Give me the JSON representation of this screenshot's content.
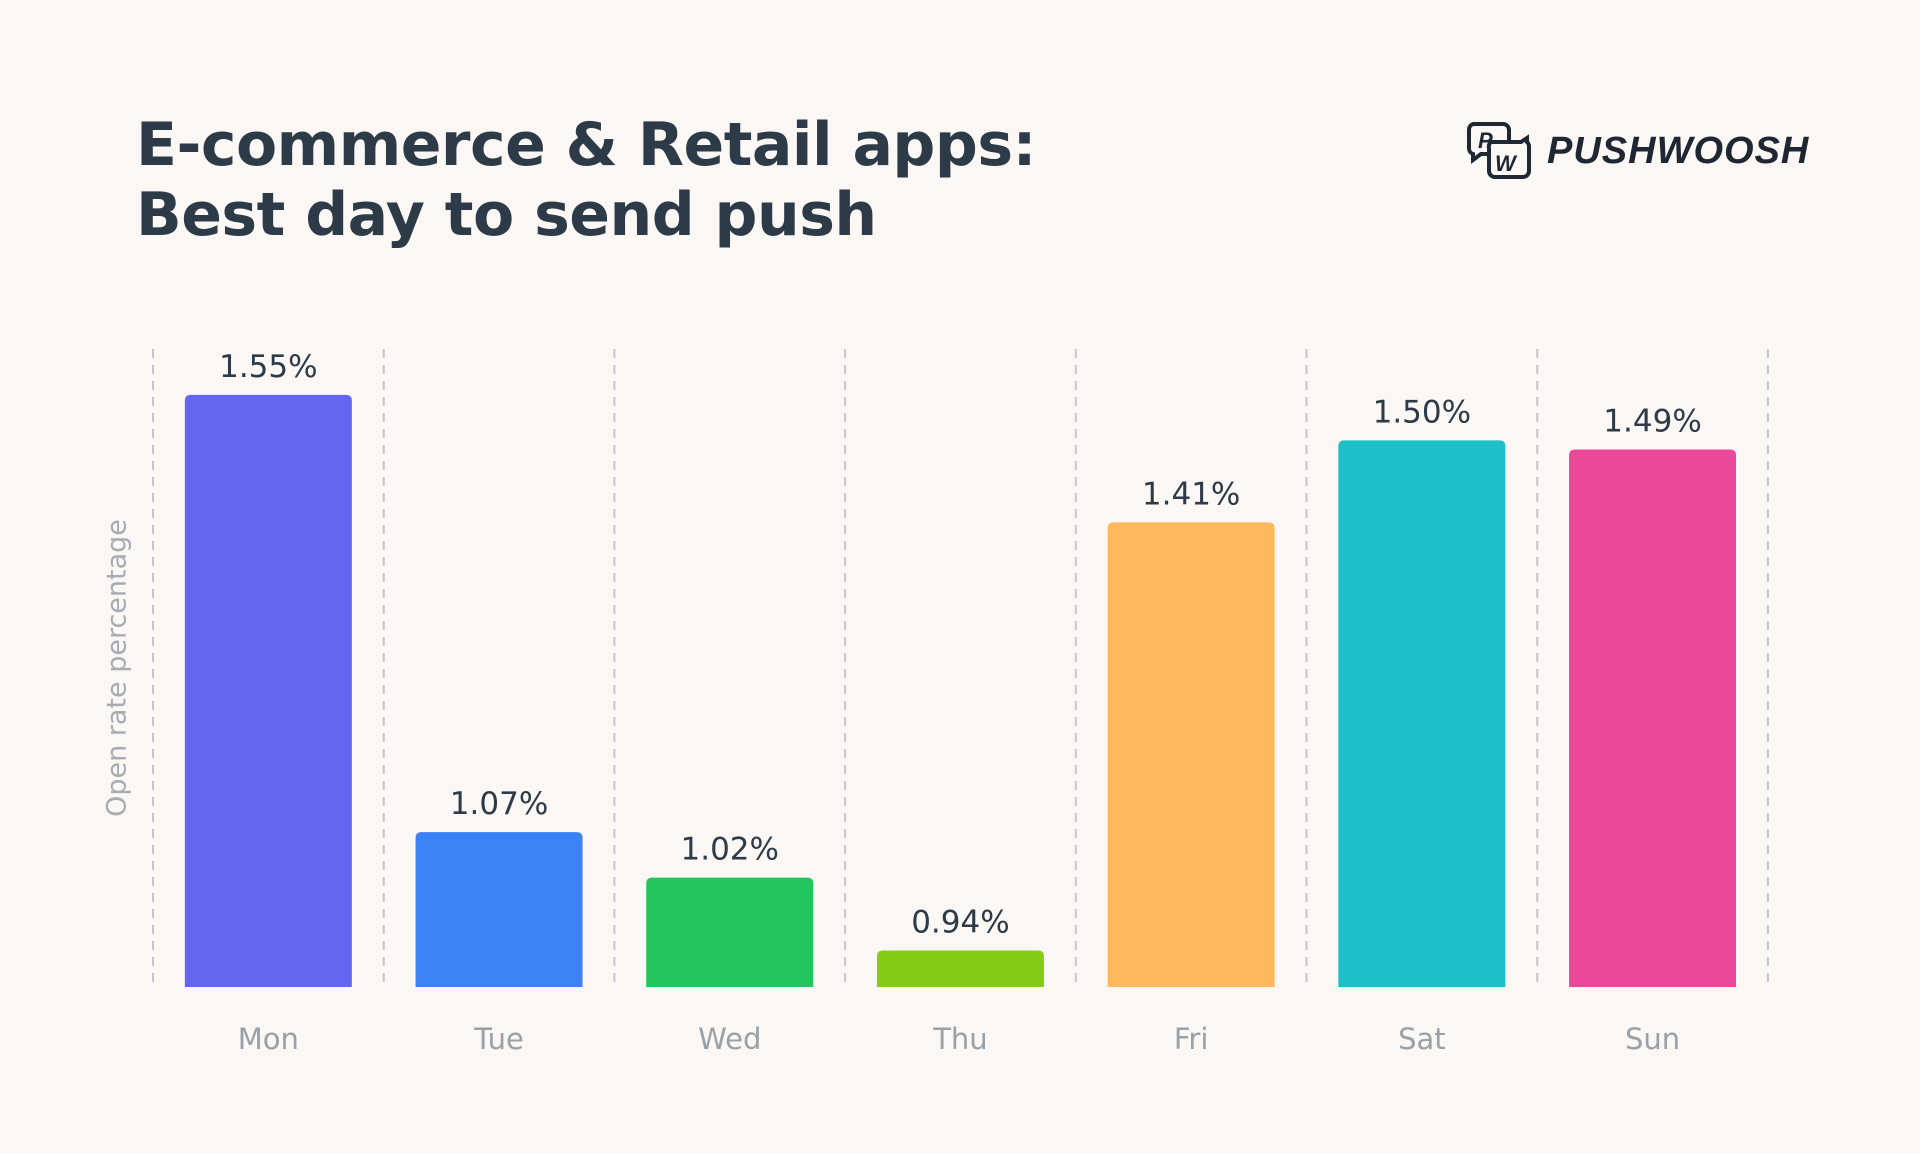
{
  "chart_data": {
    "type": "bar",
    "title": "E-commerce & Retail apps:\nBest day to send push",
    "title_lines": [
      "E-commerce & Retail apps:",
      "Best day to send push"
    ],
    "xlabel": "",
    "ylabel": "Open rate percentage",
    "categories": [
      "Mon",
      "Tue",
      "Wed",
      "Thu",
      "Fri",
      "Sat",
      "Sun"
    ],
    "values": [
      1.55,
      1.07,
      1.02,
      0.94,
      1.41,
      1.5,
      1.49
    ],
    "data_labels": [
      "1.55%",
      "1.07%",
      "1.02%",
      "0.94%",
      "1.41%",
      "1.50%",
      "1.49%"
    ],
    "colors": [
      "#6366f1",
      "#3b82f6",
      "#22c55e",
      "#84cc16",
      "#ffb85c",
      "#1cbfc6",
      "#ec4899"
    ],
    "ylim": [
      0.9,
      1.55
    ],
    "grid": "vertical dashed separators",
    "legend": "none"
  },
  "brand": {
    "name": "PUSHWOOSH",
    "logo_letters": "PW"
  }
}
